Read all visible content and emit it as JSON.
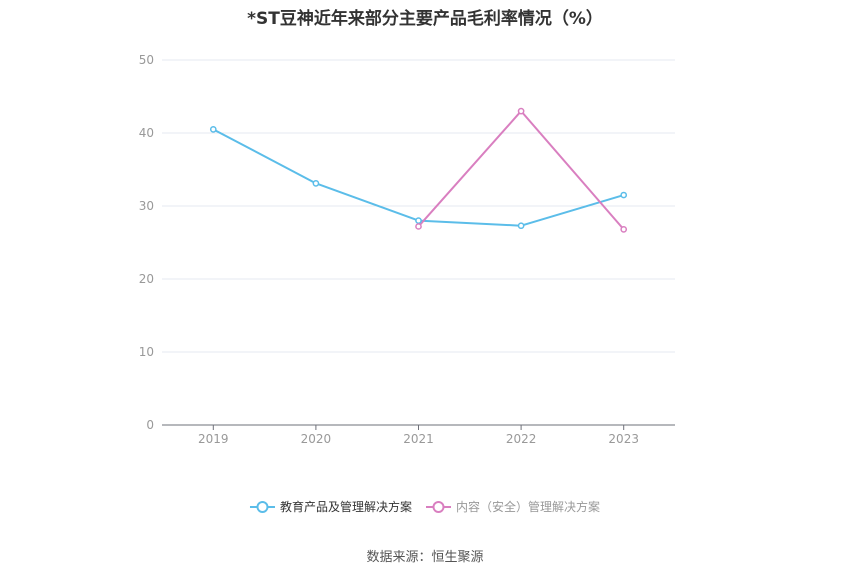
{
  "chart_data": {
    "type": "line",
    "title": "*ST豆神近年来部分主要产品毛利率情况（%）",
    "categories": [
      "2019",
      "2020",
      "2021",
      "2022",
      "2023"
    ],
    "ylim": [
      0,
      50
    ],
    "yticks": [
      0,
      10,
      20,
      30,
      40,
      50
    ],
    "grid": true,
    "legend_position": "bottom",
    "series": [
      {
        "name": "教育产品及管理解决方案",
        "color": "#5bbde9",
        "values": [
          40.5,
          33.1,
          28.0,
          27.3,
          31.5
        ]
      },
      {
        "name": "内容（安全）管理解决方案",
        "color": "#d97fc0",
        "values": [
          null,
          null,
          27.2,
          43.0,
          26.8
        ]
      }
    ]
  },
  "footer": {
    "source": "数据来源：恒生聚源"
  }
}
